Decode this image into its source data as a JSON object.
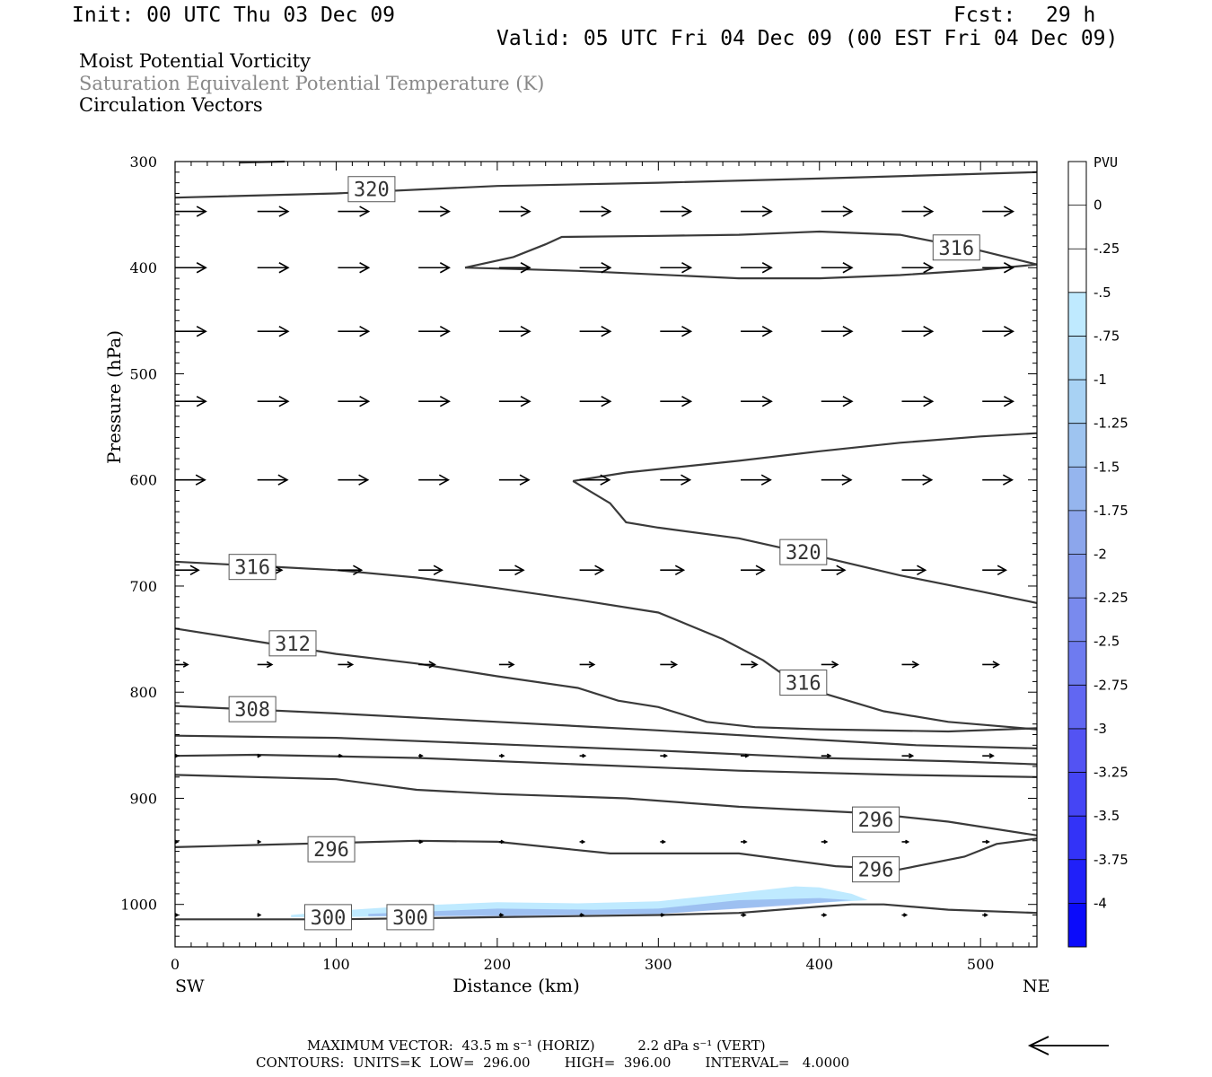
{
  "header": {
    "init": "Init: 00 UTC Thu 03 Dec 09",
    "fcst_label": "Fcst:",
    "fcst_value": "29 h",
    "valid": "Valid: 05 UTC Fri 04 Dec 09 (00 EST Fri 04 Dec 09)"
  },
  "legend_titles": {
    "line1": "Moist Potential Vorticity",
    "line2": "Saturation Equivalent Potential Temperature (K)",
    "line3": "Circulation Vectors"
  },
  "colors": {
    "contour": "#3a3a3a",
    "arrow": "#000000",
    "title_gray": "#888888"
  },
  "chart_data": {
    "type": "vertical cross-section",
    "xlabel": "Distance (km)",
    "ylabel": "Pressure (hPa)",
    "xlim": [
      0,
      535
    ],
    "ylim": [
      1040,
      300
    ],
    "x_ticks": [
      0,
      100,
      200,
      300,
      400,
      500
    ],
    "y_ticks": [
      300,
      400,
      500,
      600,
      700,
      800,
      900,
      1000
    ],
    "x_end_labels": {
      "left": "SW",
      "right": "NE"
    },
    "colorbar": {
      "title": "PVU",
      "levels": [
        "0",
        "-.25",
        "-.5",
        "-.75",
        "-1",
        "-1.25",
        "-1.5",
        "-1.75",
        "-2",
        "-2.25",
        "-2.5",
        "-2.75",
        "-3",
        "-3.25",
        "-3.5",
        "-3.75",
        "-4"
      ],
      "colors": [
        "#ffffff",
        "#ffffff",
        "#bfeaff",
        "#b4def9",
        "#a8d2f4",
        "#9ec4f0",
        "#95b5ee",
        "#8ca6ec",
        "#8399ec",
        "#798aee",
        "#6e7bf0",
        "#6167f2",
        "#5353f3",
        "#4545f5",
        "#3333f7",
        "#2020f9",
        "#0b0bfb"
      ]
    },
    "contours": [
      {
        "label": "",
        "points": [
          [
            0,
            1014
          ],
          [
            100,
            1014
          ],
          [
            200,
            1012
          ],
          [
            300,
            1010
          ],
          [
            350,
            1008
          ],
          [
            400,
            1002
          ],
          [
            420,
            1000
          ],
          [
            440,
            1000
          ],
          [
            480,
            1005
          ],
          [
            535,
            1008
          ]
        ]
      },
      {
        "label": "",
        "points": [
          [
            0,
            946
          ],
          [
            50,
            944
          ],
          [
            150,
            940
          ],
          [
            200,
            941
          ],
          [
            270,
            952
          ],
          [
            350,
            952
          ],
          [
            410,
            964
          ],
          [
            450,
            967
          ],
          [
            490,
            955
          ],
          [
            510,
            943
          ],
          [
            535,
            938
          ]
        ]
      },
      {
        "label": "",
        "points": [
          [
            0,
            878
          ],
          [
            100,
            882
          ],
          [
            150,
            892
          ],
          [
            200,
            896
          ],
          [
            280,
            900
          ],
          [
            350,
            908
          ],
          [
            430,
            914
          ],
          [
            480,
            922
          ],
          [
            535,
            935
          ]
        ]
      },
      {
        "label": "",
        "points": [
          [
            0,
            860
          ],
          [
            50,
            859
          ],
          [
            150,
            862
          ],
          [
            250,
            868
          ],
          [
            350,
            874
          ],
          [
            450,
            878
          ],
          [
            535,
            880
          ]
        ]
      },
      {
        "label": "",
        "points": [
          [
            0,
            841
          ],
          [
            100,
            843
          ],
          [
            200,
            849
          ],
          [
            300,
            855
          ],
          [
            400,
            862
          ],
          [
            480,
            865
          ],
          [
            535,
            868
          ]
        ]
      },
      {
        "label": "",
        "points": [
          [
            0,
            813
          ],
          [
            100,
            820
          ],
          [
            200,
            828
          ],
          [
            300,
            836
          ],
          [
            400,
            845
          ],
          [
            460,
            850
          ],
          [
            535,
            853
          ]
        ]
      },
      {
        "label": "312",
        "points": [
          [
            0,
            740
          ],
          [
            50,
            752
          ],
          [
            100,
            764
          ],
          [
            150,
            773
          ],
          [
            200,
            785
          ],
          [
            250,
            796
          ],
          [
            275,
            808
          ],
          [
            300,
            814
          ],
          [
            330,
            828
          ],
          [
            360,
            833
          ],
          [
            400,
            835
          ],
          [
            480,
            837
          ],
          [
            535,
            834
          ]
        ]
      },
      {
        "label": "316",
        "points": [
          [
            0,
            677
          ],
          [
            50,
            681
          ],
          [
            100,
            685
          ],
          [
            150,
            692
          ],
          [
            200,
            702
          ],
          [
            250,
            713
          ],
          [
            300,
            725
          ],
          [
            340,
            750
          ],
          [
            365,
            770
          ],
          [
            380,
            786
          ],
          [
            400,
            800
          ],
          [
            440,
            818
          ],
          [
            480,
            828
          ],
          [
            535,
            835
          ]
        ]
      },
      {
        "label": "320",
        "points": [
          [
            247,
            601
          ],
          [
            270,
            622
          ],
          [
            280,
            640
          ],
          [
            300,
            645
          ],
          [
            350,
            655
          ],
          [
            400,
            672
          ],
          [
            450,
            690
          ],
          [
            500,
            705
          ],
          [
            535,
            716
          ]
        ]
      },
      {
        "label": "",
        "points": [
          [
            247,
            601
          ],
          [
            280,
            593
          ],
          [
            350,
            582
          ],
          [
            400,
            573
          ],
          [
            450,
            565
          ],
          [
            500,
            559
          ],
          [
            535,
            556
          ]
        ]
      },
      {
        "label": "316",
        "points": [
          [
            180,
            400
          ],
          [
            210,
            390
          ],
          [
            230,
            378
          ],
          [
            240,
            371
          ],
          [
            300,
            370
          ],
          [
            350,
            369
          ],
          [
            400,
            366
          ],
          [
            450,
            369
          ],
          [
            500,
            384
          ],
          [
            535,
            397
          ]
        ]
      },
      {
        "label": "",
        "points": [
          [
            180,
            400
          ],
          [
            250,
            403
          ],
          [
            350,
            410
          ],
          [
            400,
            410
          ],
          [
            450,
            407
          ],
          [
            500,
            402
          ],
          [
            535,
            397
          ]
        ]
      },
      {
        "label": "320",
        "points": [
          [
            0,
            334
          ],
          [
            100,
            330
          ],
          [
            200,
            323
          ],
          [
            300,
            320
          ],
          [
            400,
            316
          ],
          [
            535,
            310
          ]
        ]
      },
      {
        "label": "",
        "points": [
          [
            40,
            301
          ],
          [
            68,
            300
          ]
        ]
      }
    ],
    "contour_labels": [
      {
        "text": "320",
        "x": 122,
        "y": 326
      },
      {
        "text": "316",
        "x": 485,
        "y": 381
      },
      {
        "text": "320",
        "x": 390,
        "y": 668
      },
      {
        "text": "316",
        "x": 48,
        "y": 682
      },
      {
        "text": "312",
        "x": 73,
        "y": 754
      },
      {
        "text": "316",
        "x": 390,
        "y": 791
      },
      {
        "text": "308",
        "x": 48,
        "y": 816
      },
      {
        "text": "296",
        "x": 435,
        "y": 920
      },
      {
        "text": "296",
        "x": 97,
        "y": 948
      },
      {
        "text": "296",
        "x": 435,
        "y": 967
      },
      {
        "text": "300",
        "x": 95,
        "y": 1012
      },
      {
        "text": "300",
        "x": 146,
        "y": 1012
      }
    ],
    "vectors": [
      {
        "y": 347,
        "x": [
          0,
          50,
          100,
          150,
          200,
          250,
          300,
          350,
          400,
          450,
          500
        ],
        "dx": [
          34,
          34,
          34,
          34,
          34,
          34,
          34,
          34,
          34,
          34,
          34
        ]
      },
      {
        "y": 400,
        "x": [
          0,
          50,
          100,
          150,
          200,
          250,
          300,
          350,
          400,
          450,
          500
        ],
        "dx": [
          34,
          34,
          34,
          34,
          34,
          34,
          34,
          34,
          34,
          34,
          34
        ]
      },
      {
        "y": 460,
        "x": [
          0,
          50,
          100,
          150,
          200,
          250,
          300,
          350,
          400,
          450,
          500
        ],
        "dx": [
          34,
          34,
          34,
          34,
          34,
          34,
          34,
          34,
          34,
          34,
          34
        ]
      },
      {
        "y": 526,
        "x": [
          0,
          50,
          100,
          150,
          200,
          250,
          300,
          350,
          400,
          450,
          500
        ],
        "dx": [
          34,
          34,
          34,
          34,
          34,
          34,
          34,
          34,
          34,
          34,
          34
        ]
      },
      {
        "y": 600,
        "x": [
          0,
          50,
          100,
          150,
          200,
          250,
          300,
          350,
          400,
          450,
          500
        ],
        "dx": [
          33,
          33,
          33,
          33,
          33,
          33,
          33,
          33,
          33,
          33,
          33
        ]
      },
      {
        "y": 685,
        "x": [
          0,
          50,
          100,
          150,
          200,
          250,
          300,
          350,
          400,
          450,
          500
        ],
        "dx": [
          26,
          27,
          26,
          26,
          27,
          26,
          26,
          26,
          26,
          26,
          26
        ]
      },
      {
        "y": 774,
        "x": [
          0,
          50,
          100,
          150,
          200,
          250,
          300,
          350,
          400,
          450,
          500
        ],
        "dx": [
          14,
          16,
          16,
          18,
          16,
          16,
          18,
          18,
          18,
          18,
          18
        ]
      },
      {
        "y": 860,
        "x": [
          0,
          50,
          100,
          150,
          200,
          250,
          300,
          350,
          400,
          450,
          500
        ],
        "dx": [
          3,
          3,
          4,
          4,
          5,
          6,
          7,
          8,
          10,
          12,
          12
        ]
      },
      {
        "y": 941,
        "x": [
          0,
          50,
          100,
          150,
          200,
          250,
          300,
          350,
          400,
          450,
          500
        ],
        "dx": [
          3,
          3,
          4,
          4,
          5,
          5,
          5,
          6,
          6,
          7,
          7
        ]
      },
      {
        "y": 1010,
        "x": [
          0,
          50,
          100,
          150,
          200,
          250,
          300,
          350,
          400,
          450,
          500
        ],
        "dx": [
          3,
          3,
          3,
          3,
          4,
          4,
          4,
          5,
          5,
          5,
          5
        ]
      }
    ],
    "mpv_region": {
      "level": "-0.5",
      "points": [
        [
          72,
          1010
        ],
        [
          100,
          1006
        ],
        [
          150,
          1001
        ],
        [
          200,
          998
        ],
        [
          250,
          999
        ],
        [
          300,
          997
        ],
        [
          350,
          989
        ],
        [
          385,
          983
        ],
        [
          400,
          984
        ],
        [
          420,
          990
        ],
        [
          430,
          996
        ],
        [
          380,
          1000
        ],
        [
          300,
          1009
        ],
        [
          200,
          1010
        ],
        [
          100,
          1012
        ],
        [
          72,
          1012
        ]
      ]
    },
    "mpv_region_inner": {
      "level": "-1.5",
      "points": [
        [
          120,
          1009
        ],
        [
          200,
          1004
        ],
        [
          260,
          1005
        ],
        [
          300,
          1004
        ],
        [
          350,
          996
        ],
        [
          400,
          994
        ],
        [
          420,
          996
        ],
        [
          380,
          1001
        ],
        [
          300,
          1009
        ],
        [
          200,
          1011
        ],
        [
          120,
          1011
        ]
      ]
    }
  },
  "footer": {
    "line1": "MAXIMUM VECTOR:  43.5 m s⁻¹ (HORIZ)          2.2 dPa s⁻¹ (VERT)",
    "line2": "CONTOURS:  UNITS=K  LOW=  296.00        HIGH=  396.00        INTERVAL=   4.0000"
  }
}
